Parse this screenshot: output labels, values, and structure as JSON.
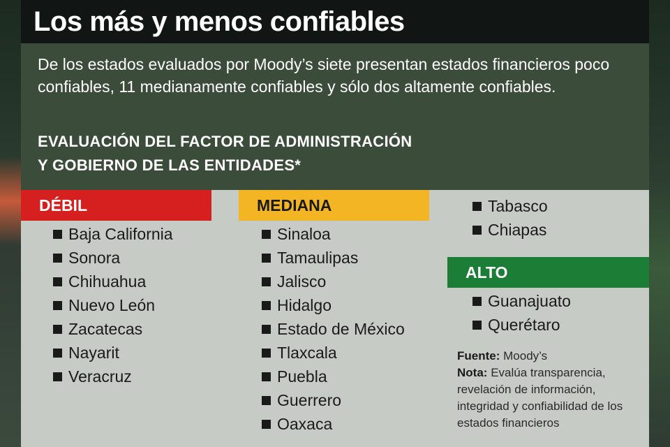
{
  "title": "Los más y menos confiables",
  "intro": "De los estados evaluados por Moody’s siete presentan estados financieros poco confiables, 11 medianamente confiables y sólo dos altamente confiables.",
  "heading": {
    "line1": "EVALUACIÓN DEL FACTOR DE ADMINISTRACIÓN",
    "line2": "Y GOBIERNO DE LAS ENTIDADES*"
  },
  "categories": {
    "debil": {
      "label": "DÉBIL",
      "color": "#d5201f",
      "states": [
        "Baja California",
        "Sonora",
        "Chihuahua",
        "Nuevo León",
        "Zacatecas",
        "Nayarit",
        "Veracruz"
      ]
    },
    "mediana": {
      "label": "MEDIANA",
      "color": "#f3b523",
      "states": [
        "Sinaloa",
        "Tamaulipas",
        "Jalisco",
        "Hidalgo",
        "Estado de México",
        "Tlaxcala",
        "Puebla",
        "Guerrero",
        "Oaxaca",
        "Tabasco",
        "Chiapas"
      ]
    },
    "alto": {
      "label": "ALTO",
      "color": "#1c7d37",
      "states": [
        "Guanajuato",
        "Querétaro"
      ]
    }
  },
  "source": {
    "label": "Fuente:",
    "text": "Moody’s"
  },
  "note": {
    "label": "Nota:",
    "text": "Evalúa transparencia, revelación de información, integridad y confiabilidad de los estados financieros"
  }
}
